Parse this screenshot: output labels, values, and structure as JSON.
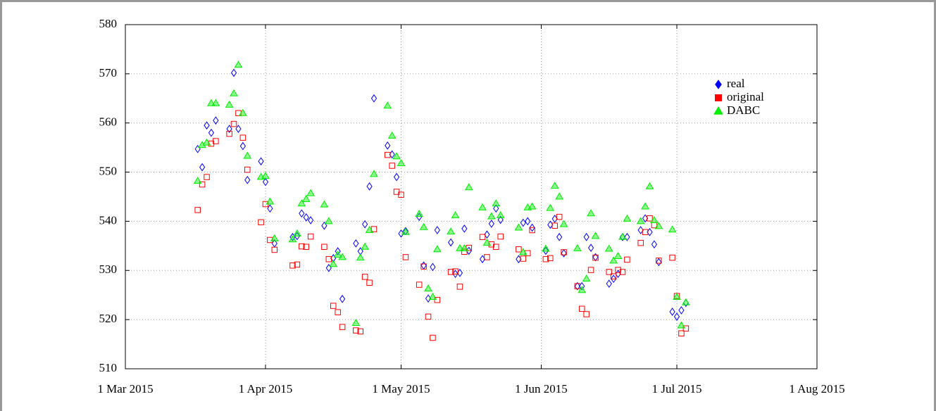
{
  "chart_data": {
    "type": "scatter",
    "x": [
      "2015-03-17",
      "2015-03-18",
      "2015-03-19",
      "2015-03-20",
      "2015-03-21",
      "2015-03-24",
      "2015-03-25",
      "2015-03-26",
      "2015-03-27",
      "2015-03-28",
      "2015-03-31",
      "2015-04-01",
      "2015-04-02",
      "2015-04-03",
      "2015-04-07",
      "2015-04-08",
      "2015-04-09",
      "2015-04-10",
      "2015-04-11",
      "2015-04-14",
      "2015-04-15",
      "2015-04-16",
      "2015-04-17",
      "2015-04-18",
      "2015-04-21",
      "2015-04-22",
      "2015-04-23",
      "2015-04-24",
      "2015-04-25",
      "2015-04-28",
      "2015-04-29",
      "2015-04-30",
      "2015-05-01",
      "2015-05-02",
      "2015-05-05",
      "2015-05-06",
      "2015-05-07",
      "2015-05-08",
      "2015-05-09",
      "2015-05-12",
      "2015-05-13",
      "2015-05-14",
      "2015-05-15",
      "2015-05-16",
      "2015-05-19",
      "2015-05-20",
      "2015-05-21",
      "2015-05-22",
      "2015-05-23",
      "2015-05-27",
      "2015-05-28",
      "2015-05-29",
      "2015-05-30",
      "2015-06-02",
      "2015-06-03",
      "2015-06-04",
      "2015-06-05",
      "2015-06-06",
      "2015-06-09",
      "2015-06-10",
      "2015-06-11",
      "2015-06-12",
      "2015-06-13",
      "2015-06-16",
      "2015-06-17",
      "2015-06-18",
      "2015-06-19",
      "2015-06-20",
      "2015-06-23",
      "2015-06-24",
      "2015-06-25",
      "2015-06-26",
      "2015-06-27",
      "2015-06-30",
      "2015-07-01",
      "2015-07-02",
      "2015-07-03"
    ],
    "series": [
      {
        "name": "real",
        "color": "#0000ff",
        "marker": "diamond",
        "values": [
          554.7,
          551,
          559.5,
          558,
          560.5,
          558.8,
          570.2,
          558.8,
          555.3,
          548.4,
          552.2,
          548,
          542.6,
          535.5,
          536.8,
          537,
          541.6,
          540.8,
          540.2,
          539.1,
          530.5,
          532.5,
          533.9,
          524.2,
          535.5,
          533.9,
          539.4,
          547.1,
          565,
          555.4,
          553.6,
          549,
          537.5,
          538,
          540.9,
          531,
          524.3,
          530.7,
          538.2,
          535.7,
          529.3,
          529.5,
          538.5,
          534,
          532.3,
          537.3,
          539.5,
          542.6,
          540.3,
          532.3,
          539.7,
          540,
          538.7,
          534,
          539.3,
          540.5,
          536.8,
          533.5,
          526.8,
          526.8,
          536.8,
          534.6,
          532.7,
          527.3,
          528.3,
          529.3,
          536.8,
          536.8,
          538.2,
          540.6,
          537.8,
          535.3,
          531.7,
          521.6,
          520.6,
          521.9,
          523.4
        ]
      },
      {
        "name": "original",
        "color": "#ff0000",
        "marker": "square",
        "values": [
          542.3,
          547.5,
          549,
          555.8,
          556.3,
          557.8,
          559.8,
          562,
          557,
          550.5,
          539.8,
          543.5,
          536.2,
          534.2,
          531,
          531.2,
          534.9,
          534.8,
          536.9,
          534.8,
          532.3,
          522.8,
          521.5,
          518.5,
          517.8,
          517.6,
          528.7,
          527.5,
          538.4,
          553.5,
          551.3,
          546,
          545.4,
          532.7,
          527.1,
          530.8,
          520.6,
          516.3,
          524,
          529.7,
          529.8,
          526.7,
          533.8,
          534.6,
          536.8,
          532.7,
          535.3,
          534.8,
          536.9,
          534.3,
          532.4,
          533.5,
          538.2,
          532.3,
          532.5,
          539.1,
          540.9,
          533.7,
          526.8,
          522.2,
          521.1,
          530.1,
          532.6,
          529.7,
          528.8,
          530.1,
          529.7,
          532.2,
          535.6,
          537.8,
          540.6,
          539.2,
          532,
          532.6,
          524.8,
          517.2,
          518.2
        ]
      },
      {
        "name": "DABC",
        "color": "#00ee00",
        "marker": "triangle",
        "values": [
          548.2,
          555.5,
          556,
          564,
          564,
          563.7,
          566,
          571.8,
          562,
          553.3,
          549,
          549.2,
          544,
          536.5,
          536.3,
          537.5,
          543.6,
          544.5,
          545.7,
          543.4,
          540,
          531.3,
          533.2,
          532.7,
          519.3,
          532.6,
          534.8,
          538.2,
          549.6,
          563.5,
          557.4,
          553.2,
          551.8,
          537.8,
          541.5,
          538.8,
          526.3,
          524.6,
          534.3,
          537.9,
          541.2,
          534.5,
          534.5,
          546.9,
          542.8,
          535.6,
          541,
          543.6,
          541.2,
          538.7,
          533.7,
          542.8,
          543,
          534.4,
          542.7,
          547.2,
          545,
          539.4,
          534.5,
          526,
          528.3,
          541.6,
          537,
          534.4,
          532,
          532.9,
          536.8,
          540.5,
          540,
          543,
          547.1,
          540.2,
          539,
          538.3,
          524.6,
          518.8,
          523.5
        ]
      }
    ],
    "xlim": [
      "2015-03-01",
      "2015-08-01"
    ],
    "xticks": [
      {
        "value": "2015-03-01",
        "label": "1 Mar 2015"
      },
      {
        "value": "2015-04-01",
        "label": "1 Apr 2015"
      },
      {
        "value": "2015-05-01",
        "label": "1 May 2015"
      },
      {
        "value": "2015-06-01",
        "label": "1 Jun 2015"
      },
      {
        "value": "2015-07-01",
        "label": "1 Jul 2015"
      },
      {
        "value": "2015-08-01",
        "label": "1 Aug 2015"
      }
    ],
    "ylim": [
      510,
      580
    ],
    "yticks": [
      510,
      520,
      530,
      540,
      550,
      560,
      570,
      580
    ],
    "grid": true,
    "legend": "top-right"
  }
}
